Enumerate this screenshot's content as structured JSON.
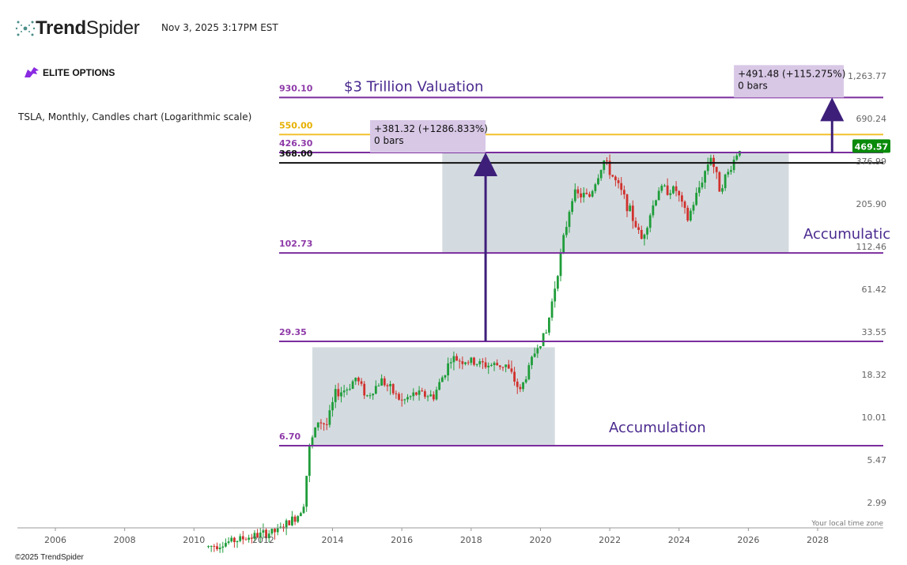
{
  "header": {
    "brand_bold": "Trend",
    "brand_light": "Spider",
    "timestamp": "Nov 3, 2025 3:17PM EST",
    "elite_logo_text": "ELITE OPTIONS"
  },
  "chart_description": "TSLA, Monthly, Candles chart (Logarithmic scale)",
  "footer": {
    "copyright": "©2025 TrendSpider"
  },
  "colors": {
    "up": "#1f9d3a",
    "down": "#d0312d",
    "level_line": "#7b2d9e",
    "level_label": "#8e3aa8",
    "yellow_line": "#f2c12e",
    "yellow_label": "#e6b000",
    "arrow": "#3d1f7a",
    "zone_fill": "#d4dbe0",
    "annotation_bg": "#d8c8e6",
    "price_badge": "#0a8a0a"
  },
  "chart_data": {
    "type": "candlestick",
    "title": "TSLA, Monthly, Candles chart (Logarithmic scale)",
    "y_scale": "log",
    "x_axis_ticks": [
      "2006",
      "2008",
      "2010",
      "2012",
      "2014",
      "2016",
      "2018",
      "2020",
      "2022",
      "2024",
      "2026",
      "2028"
    ],
    "y_axis_ticks": [
      "1,263.77",
      "690.24",
      "376.99",
      "205.90",
      "112.46",
      "61.42",
      "33.55",
      "18.32",
      "10.01",
      "5.47",
      "2.99"
    ],
    "axis_note": "Your local time zone",
    "current_price": "469.57",
    "levels": [
      {
        "label": "930.10",
        "value": 930.1,
        "color": "purple"
      },
      {
        "label": "550.00",
        "value": 550.0,
        "color": "yellow"
      },
      {
        "label": "426.30",
        "value": 426.3,
        "color": "purple"
      },
      {
        "label": "368.00",
        "value": 368.0,
        "color": "black"
      },
      {
        "label": "102.73",
        "value": 102.73,
        "color": "purple"
      },
      {
        "label": "29.35",
        "value": 29.35,
        "color": "purple"
      },
      {
        "label": "6.70",
        "value": 6.7,
        "color": "purple"
      }
    ],
    "zones": [
      {
        "from_date": "2013-06",
        "to_date": "2020-06",
        "low": 6.7,
        "high": 27.0,
        "label": "Accumulation"
      },
      {
        "from_date": "2017-03",
        "to_date": "2027-03",
        "low": 102.73,
        "high": 426.3,
        "label": "Accumulatic"
      }
    ],
    "annotations": [
      {
        "text_line1": "+381.32 (+1286.833%)",
        "text_line2": "0 bars",
        "date": "2015-02"
      },
      {
        "text_line1": "+491.48 (+115.275%)",
        "text_line2": "0 bars",
        "date": "2025-08"
      }
    ],
    "text_labels": [
      {
        "text": "$3 Trillion Valuation",
        "date": "2015-02",
        "value": 930.1
      }
    ],
    "arrows": [
      {
        "date": "2018-06",
        "from": 29.35,
        "to": 426.3
      },
      {
        "date": "2028-06",
        "from": 426.3,
        "to": 930.1
      }
    ],
    "candles_yearly_path": [
      [
        "2010-06",
        1.6
      ],
      [
        "2011-06",
        1.8
      ],
      [
        "2012-06",
        2.0
      ],
      [
        "2013-01",
        2.5
      ],
      [
        "2013-03",
        3.0
      ],
      [
        "2013-05",
        6.5
      ],
      [
        "2013-08",
        9.5
      ],
      [
        "2013-11",
        9.0
      ],
      [
        "2014-02",
        14.0
      ],
      [
        "2014-06",
        15.0
      ],
      [
        "2014-09",
        17.5
      ],
      [
        "2015-01",
        13.5
      ],
      [
        "2015-06",
        17.0
      ],
      [
        "2016-01",
        12.5
      ],
      [
        "2016-06",
        14.0
      ],
      [
        "2016-12",
        13.5
      ],
      [
        "2017-06",
        23.0
      ],
      [
        "2018-01",
        22.0
      ],
      [
        "2018-06",
        21.0
      ],
      [
        "2019-01",
        21.0
      ],
      [
        "2019-06",
        14.5
      ],
      [
        "2019-12",
        28.0
      ],
      [
        "2020-03",
        33.0
      ],
      [
        "2020-08",
        100.0
      ],
      [
        "2020-12",
        235.0
      ],
      [
        "2021-06",
        230.0
      ],
      [
        "2021-11",
        380.0
      ],
      [
        "2022-06",
        225.0
      ],
      [
        "2022-12",
        125.0
      ],
      [
        "2023-06",
        255.0
      ],
      [
        "2023-12",
        250.0
      ],
      [
        "2024-04",
        165.0
      ],
      [
        "2024-12",
        410.0
      ],
      [
        "2025-03",
        260.0
      ],
      [
        "2025-06",
        320.0
      ],
      [
        "2025-10",
        460.0
      ]
    ]
  }
}
